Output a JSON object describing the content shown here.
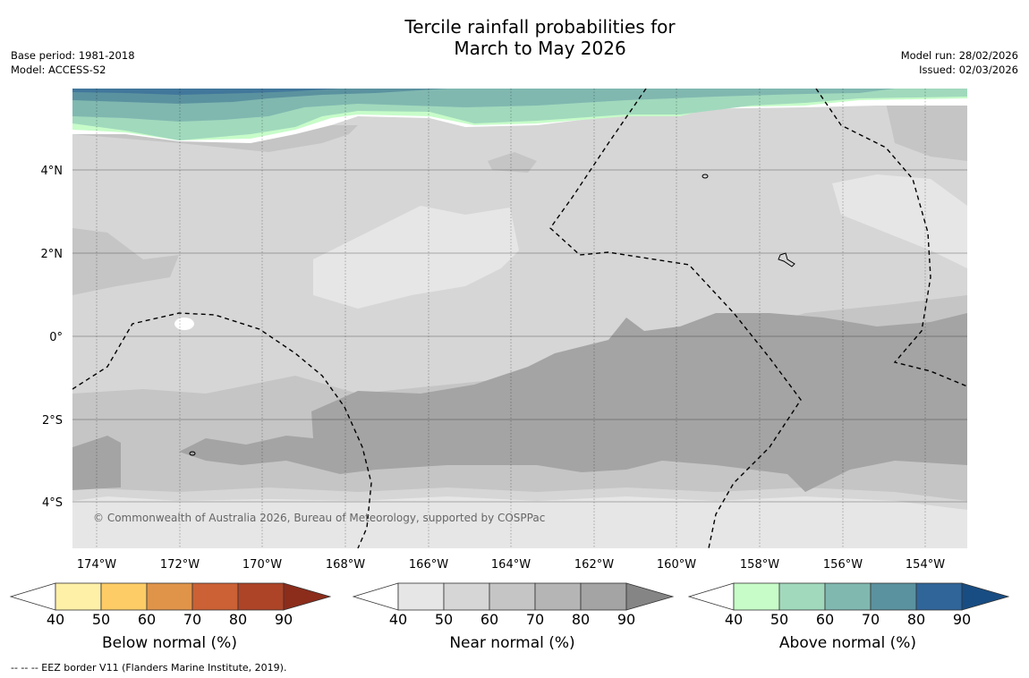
{
  "header": {
    "title_line1": "Tercile rainfall probabilities for",
    "title_line2": "March to May 2026",
    "base_period": "Base period: 1981-2018",
    "model": "Model: ACCESS-S2",
    "model_run": "Model run: 28/02/2026",
    "issued": "Issued: 02/03/2026"
  },
  "map": {
    "lon_labels": [
      "174°W",
      "172°W",
      "170°W",
      "168°W",
      "166°W",
      "164°W",
      "162°W",
      "160°W",
      "158°W",
      "156°W",
      "154°W"
    ],
    "lat_labels": [
      "4°N",
      "2°N",
      "0°",
      "2°S",
      "4°S"
    ],
    "copyright": "© Commonwealth of Australia 2026, Bureau of Meteorology, supported by COSPPac"
  },
  "legend": {
    "below": {
      "title": "Below normal (%)",
      "colors": [
        "#fff0a8",
        "#fecc66",
        "#e0944a",
        "#cb6135",
        "#ad4427",
        "#8c2c1b"
      ],
      "ticks": [
        "40",
        "50",
        "60",
        "70",
        "80",
        "90"
      ]
    },
    "near": {
      "title": "Near normal (%)",
      "colors": [
        "#e6e6e6",
        "#d6d6d6",
        "#c5c5c5",
        "#b5b5b5",
        "#a4a4a4",
        "#858585"
      ],
      "ticks": [
        "40",
        "50",
        "60",
        "70",
        "80",
        "90"
      ]
    },
    "above": {
      "title": "Above normal (%)",
      "colors": [
        "#c7fcc9",
        "#a1d9bd",
        "#80b8b0",
        "#5b929f",
        "#30659a",
        "#184d83"
      ],
      "ticks": [
        "40",
        "50",
        "60",
        "70",
        "80",
        "90"
      ]
    }
  },
  "footer": {
    "eez": "--  --  -- EEZ border V11 (Flanders Marine Institute, 2019)."
  }
}
